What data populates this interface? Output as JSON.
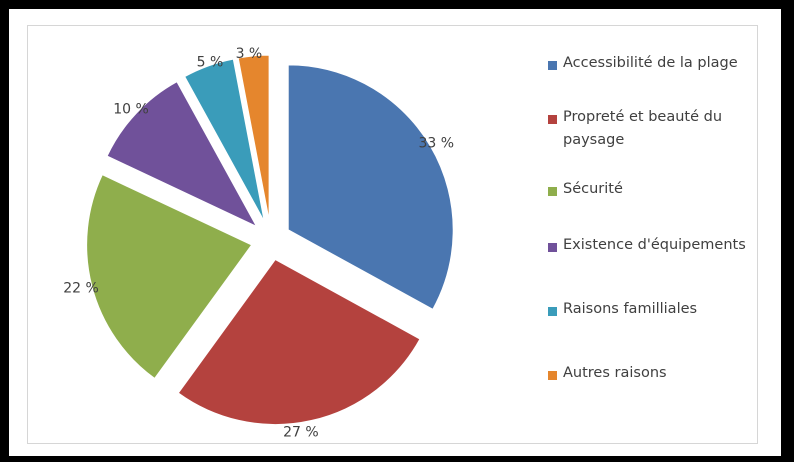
{
  "chart_data": {
    "type": "pie",
    "title": "",
    "slices": [
      {
        "label": "Accessibilité de la plage",
        "value": 33,
        "value_label": "33 %",
        "color": "#4a76b0"
      },
      {
        "label": "Propreté et beauté du paysage",
        "value": 27,
        "value_label": "27 %",
        "color": "#b4423e"
      },
      {
        "label": "Sécurité",
        "value": 22,
        "value_label": "22 %",
        "color": "#8fae4c"
      },
      {
        "label": "Existence d'équipements",
        "value": 10,
        "value_label": "10 %",
        "color": "#70519a"
      },
      {
        "label": "Raisons familliales",
        "value": 5,
        "value_label": "5 %",
        "color": "#3a9cba"
      },
      {
        "label": "Autres raisons",
        "value": 3,
        "value_label": "3 %",
        "color": "#e5862d"
      }
    ],
    "exploded": true,
    "legend_position": "right"
  }
}
